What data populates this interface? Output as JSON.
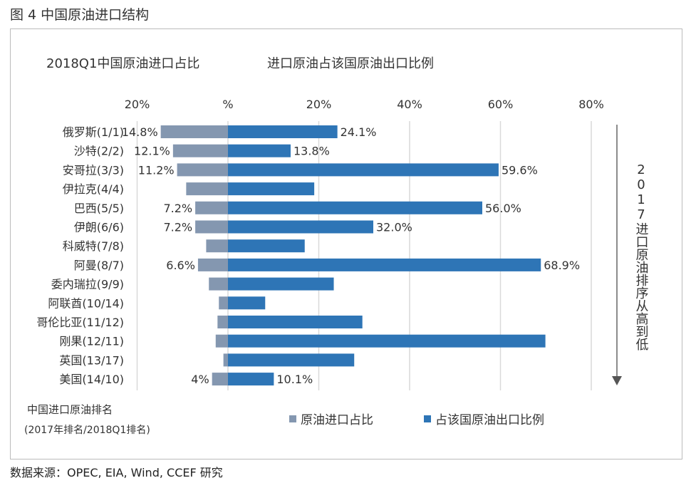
{
  "figure_title": "图 4  中国原油进口结构",
  "source": "数据来源：OPEC, EIA, Wind, CCEF 研究",
  "chart_data": {
    "type": "bar",
    "orientation": "horizontal-diverging",
    "left_title": "2018Q1中国原油进口占比",
    "right_title": "进口原油占该国原油出口比例",
    "x_tick_labels": [
      "20%",
      "%",
      "20%",
      "40%",
      "60%",
      "80%"
    ],
    "x_ticks": [
      -20,
      0,
      20,
      40,
      60,
      80
    ],
    "xlim": [
      -20,
      80
    ],
    "grid": true,
    "categories": [
      "俄罗斯(1/1)",
      "沙特(2/2)",
      "安哥拉(3/3)",
      "伊拉克(4/4)",
      "巴西(5/5)",
      "伊朗(6/6)",
      "科威特(7/8)",
      "阿曼(8/7)",
      "委内瑞拉(9/9)",
      "阿联酋(10/14)",
      "哥伦比亚(11/12)",
      "刚果(12/11)",
      "英国(13/17)",
      "美国(14/10)"
    ],
    "series": [
      {
        "name": "原油进口占比",
        "color": "#8497b0",
        "side": "left",
        "values": [
          14.8,
          12.1,
          11.2,
          9.2,
          7.2,
          7.2,
          4.8,
          6.6,
          4.2,
          2.0,
          2.3,
          2.7,
          1.0,
          3.5
        ],
        "labels": [
          "14.8%",
          "12.1%",
          "11.2%",
          "",
          "7.2%",
          "7.2%",
          "",
          "6.6%",
          "",
          "",
          "",
          "",
          "",
          "4%"
        ]
      },
      {
        "name": "占该国原油出口比例",
        "color": "#2e75b6",
        "side": "right",
        "values": [
          24.1,
          13.8,
          59.6,
          19.0,
          56.0,
          32.0,
          16.9,
          68.9,
          23.3,
          8.2,
          29.6,
          69.9,
          27.8,
          10.1
        ],
        "labels": [
          "24.1%",
          "13.8%",
          "59.6%",
          "",
          "56.0%",
          "32.0%",
          "",
          "68.9%",
          "",
          "",
          "",
          "",
          "",
          "10.1%"
        ]
      }
    ],
    "category_axis_note": [
      "中国进口原油排名",
      "(2017年排名/2018Q1排名)"
    ],
    "side_annotation": "2017进口原油排序从高到低",
    "legend_placement": "bottom"
  }
}
